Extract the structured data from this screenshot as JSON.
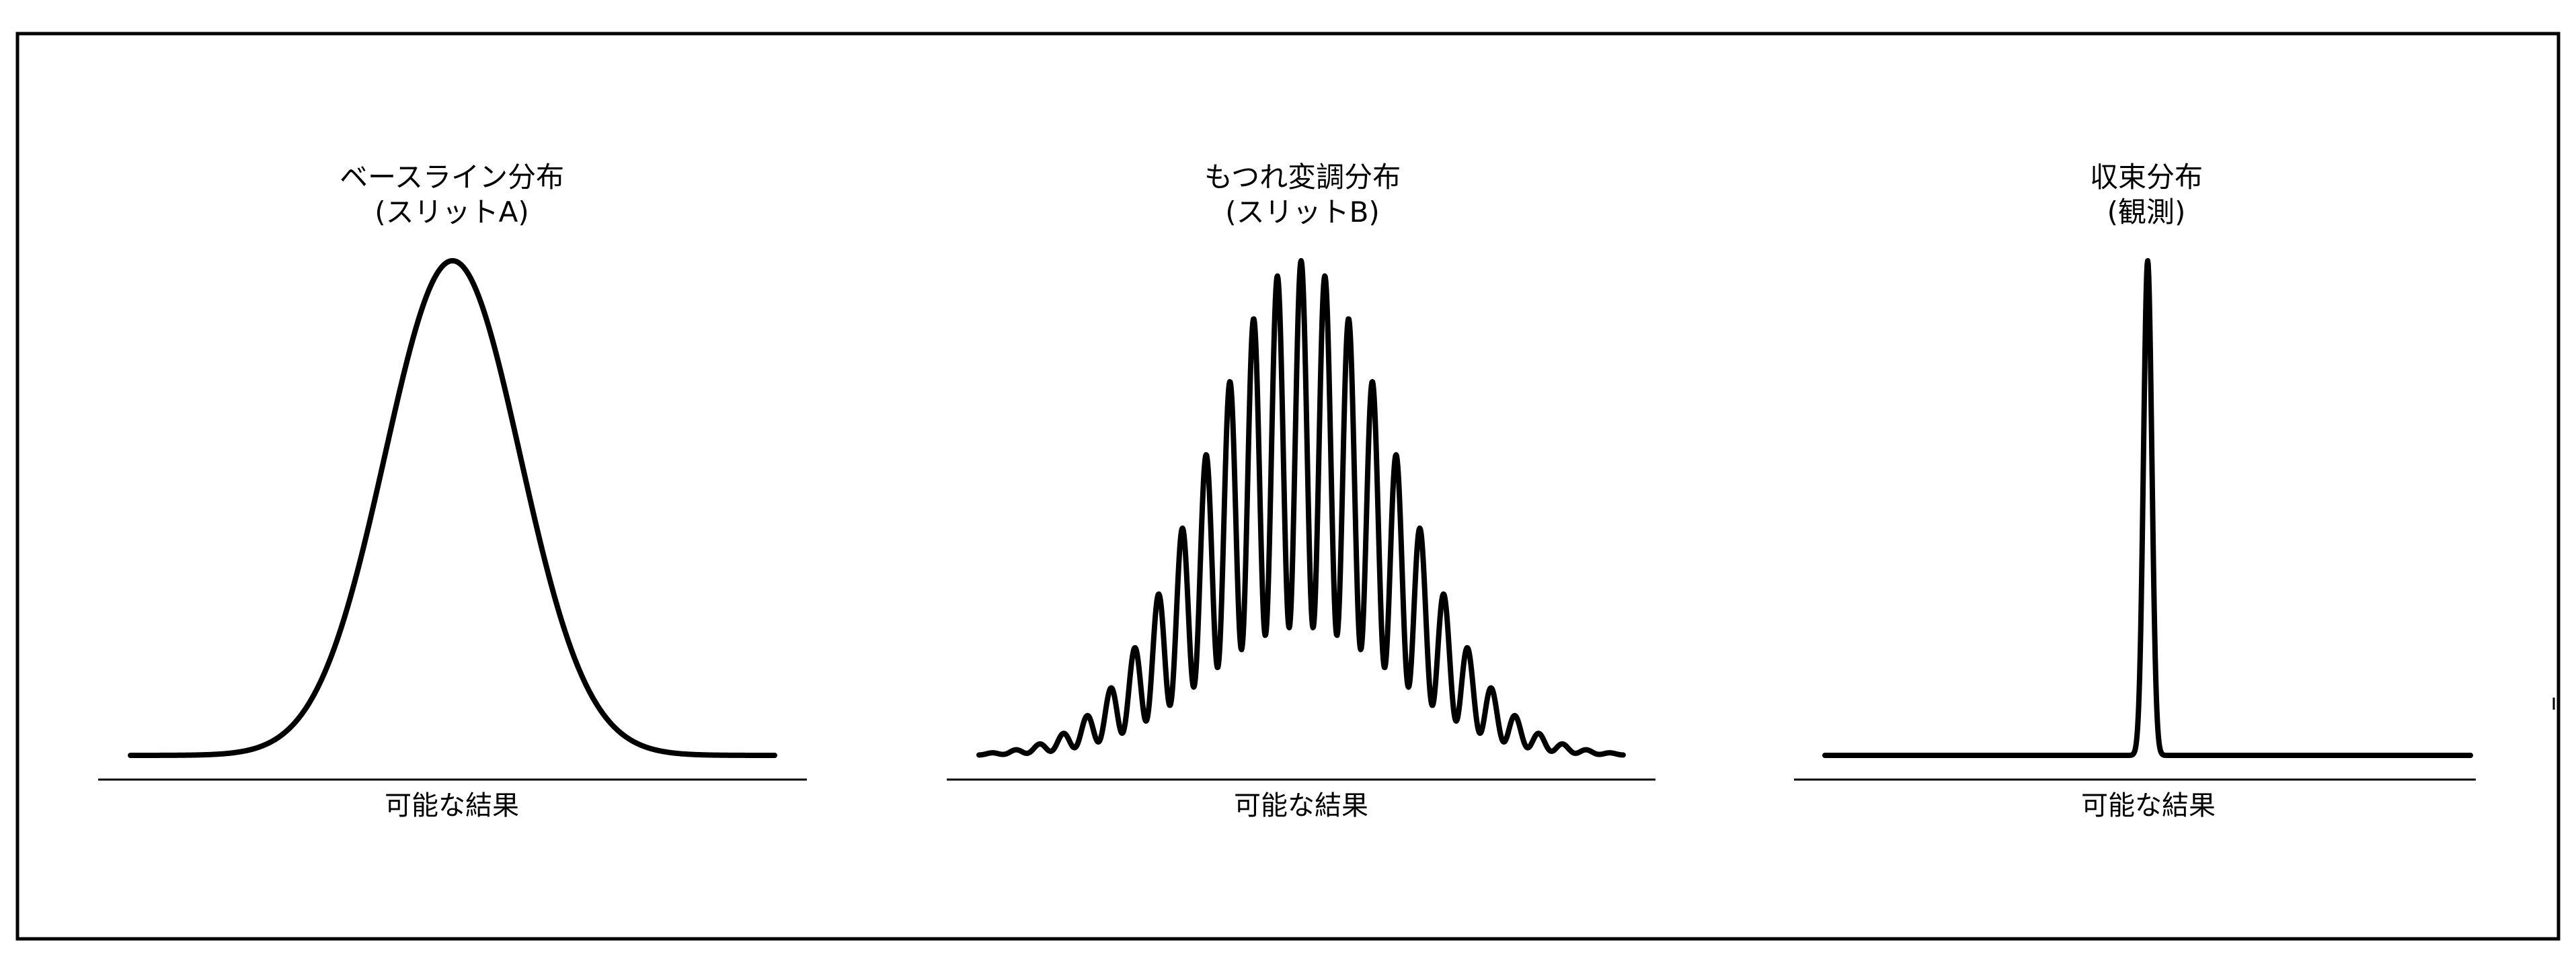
{
  "panels": [
    {
      "id": "baseline",
      "title_line1": "ベースライン分布",
      "title_line2": "(スリットA)",
      "xlabel": "可能な結果",
      "curve_shape": "single-gaussian"
    },
    {
      "id": "entangled",
      "title_line1": "もつれ変調分布",
      "title_line2": "(スリットB)",
      "xlabel": "可能な結果",
      "curve_shape": "multi-peak-interference"
    },
    {
      "id": "collapsed",
      "title_line1": "収束分布",
      "title_line2": "(観測)",
      "xlabel": "可能な結果",
      "curve_shape": "narrow-spike"
    }
  ],
  "colors": {
    "line": "#000000",
    "background": "#ffffff",
    "frame": "#000000"
  }
}
